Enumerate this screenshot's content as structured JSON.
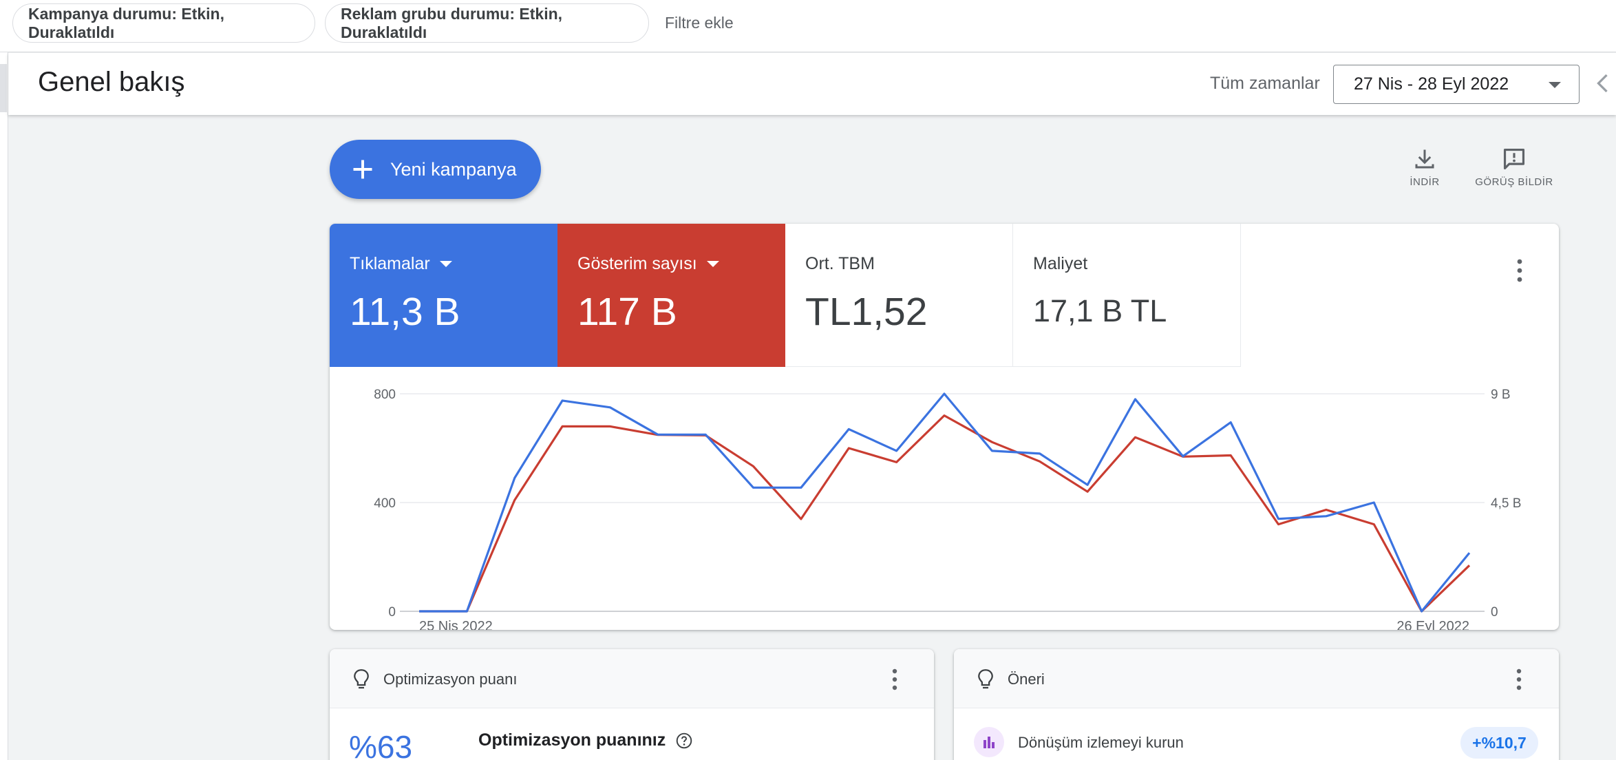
{
  "filters": {
    "chips": [
      "Kampanya durumu: Etkin, Duraklatıldı",
      "Reklam grubu durumu: Etkin, Duraklatıldı"
    ],
    "add_filter": "Filtre ekle"
  },
  "header": {
    "title": "Genel bakış",
    "range_label": "Tüm zamanlar",
    "date_range": "27 Nis - 28 Eyl 2022"
  },
  "toolbar": {
    "new_campaign": "Yeni kampanya",
    "download": "İNDİR",
    "feedback": "GÖRÜŞ BİLDİR"
  },
  "metrics": [
    {
      "label": "Tıklamalar",
      "value": "11,3 B",
      "color": "#3b73e0"
    },
    {
      "label": "Gösterim sayısı",
      "value": "117 B",
      "color": "#c93d31"
    },
    {
      "label": "Ort. TBM",
      "value": "TL1,52"
    },
    {
      "label": "Maliyet",
      "value": "17,1 B TL"
    }
  ],
  "chart_data": {
    "type": "line",
    "x_start_label": "25 Nis 2022",
    "x_end_label": "26 Eyl 2022",
    "left_axis": {
      "ticks": [
        "0",
        "400",
        "800"
      ],
      "ylim": [
        0,
        800
      ]
    },
    "right_axis": {
      "ticks": [
        "0",
        "4,5 B",
        "9 B"
      ],
      "ylim": [
        0,
        9000
      ]
    },
    "grid": true,
    "series": [
      {
        "axis": "left",
        "color": "#3b73e0",
        "values": [
          0,
          0,
          490,
          775,
          750,
          650,
          650,
          455,
          455,
          670,
          590,
          800,
          590,
          580,
          465,
          780,
          570,
          695,
          340,
          350,
          400,
          0,
          215
        ]
      },
      {
        "axis": "right",
        "color": "#c93d31",
        "values": [
          0,
          0,
          4600,
          7650,
          7650,
          7300,
          7280,
          6000,
          3820,
          6750,
          6170,
          8100,
          7000,
          6200,
          4950,
          7200,
          6400,
          6450,
          3600,
          4200,
          3600,
          0,
          1900
        ]
      }
    ]
  },
  "optimization": {
    "title": "Optimizasyon puanı",
    "score": "%63",
    "score_title": "Optimizasyon puanınız"
  },
  "recommendation": {
    "title": "Öneri",
    "item": "Dönüşüm izlemeyi kurun",
    "badge": "+%10,7"
  }
}
